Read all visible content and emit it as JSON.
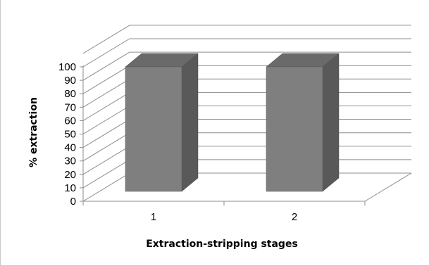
{
  "chart_data": {
    "type": "bar",
    "style": "3d-column",
    "categories": [
      "1",
      "2"
    ],
    "values": [
      100,
      100
    ],
    "title": "",
    "xlabel": "Extraction-stripping stages",
    "ylabel": "% extraction",
    "ylim": [
      0,
      100
    ],
    "yticks": [
      "0",
      "10",
      "20",
      "30",
      "40",
      "50",
      "60",
      "70",
      "80",
      "90",
      "100"
    ],
    "grid": true,
    "legend": "none",
    "colors": {
      "bar_front": "#7f7f7f",
      "bar_side": "#595959",
      "bar_top": "#6a6a6a",
      "gridline": "#8c8c8c",
      "axis": "#8c8c8c"
    }
  }
}
